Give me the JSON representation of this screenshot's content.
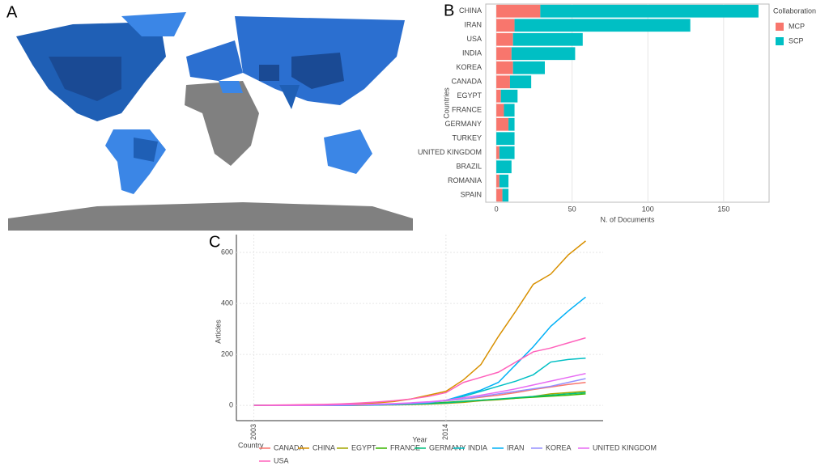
{
  "panels": [
    "A",
    "B",
    "C"
  ],
  "chart_data": [
    {
      "type": "bar",
      "orientation": "horizontal",
      "stacked": true,
      "x_label": "N. of Documents",
      "y_label": "Countries",
      "legend_title": "Collaboration",
      "categories": [
        "CHINA",
        "IRAN",
        "USA",
        "INDIA",
        "KOREA",
        "CANADA",
        "EGYPT",
        "FRANCE",
        "GERMANY",
        "TURKEY",
        "UNITED KINGDOM",
        "BRAZIL",
        "ROMANIA",
        "SPAIN"
      ],
      "series": [
        {
          "name": "MCP",
          "color": "#f8766d",
          "values": [
            29,
            12,
            11,
            10,
            11,
            9,
            3,
            5,
            8,
            0,
            2,
            0,
            2,
            4
          ]
        },
        {
          "name": "SCP",
          "color": "#00bfc4",
          "values": [
            144,
            116,
            46,
            42,
            21,
            14,
            11,
            7,
            4,
            12,
            10,
            10,
            6,
            4
          ]
        }
      ],
      "xlim": [
        -7,
        180
      ],
      "xticks": [
        0,
        50,
        100,
        150
      ],
      "grid": true,
      "legend": "right"
    },
    {
      "type": "line",
      "x_label": "Year",
      "y_label": "Articles",
      "legend_title": "Country",
      "x": [
        2003,
        2004,
        2005,
        2006,
        2007,
        2008,
        2009,
        2010,
        2011,
        2012,
        2013,
        2014,
        2015,
        2016,
        2017,
        2018,
        2019,
        2020,
        2021,
        2022
      ],
      "series": [
        {
          "name": "CANADA",
          "color": "#F8766D",
          "values": [
            0,
            0,
            0,
            0,
            0,
            1,
            2,
            3,
            5,
            8,
            12,
            18,
            25,
            32,
            40,
            50,
            62,
            72,
            82,
            90
          ]
        },
        {
          "name": "CHINA",
          "color": "#D89000",
          "values": [
            0,
            0,
            0,
            1,
            2,
            4,
            6,
            10,
            15,
            25,
            40,
            55,
            100,
            160,
            270,
            370,
            475,
            515,
            590,
            645
          ]
        },
        {
          "name": "EGYPT",
          "color": "#A3A500",
          "values": [
            0,
            0,
            0,
            0,
            0,
            0,
            0,
            1,
            2,
            3,
            5,
            8,
            12,
            18,
            22,
            28,
            35,
            45,
            50,
            55
          ]
        },
        {
          "name": "FRANCE",
          "color": "#39B600",
          "values": [
            0,
            0,
            0,
            0,
            0,
            1,
            2,
            3,
            4,
            6,
            8,
            12,
            16,
            20,
            24,
            28,
            32,
            36,
            40,
            45
          ]
        },
        {
          "name": "GERMANY",
          "color": "#00BF7D",
          "values": [
            0,
            0,
            0,
            0,
            0,
            0,
            1,
            2,
            3,
            5,
            7,
            10,
            15,
            20,
            25,
            30,
            35,
            40,
            45,
            50
          ]
        },
        {
          "name": "INDIA",
          "color": "#00BFC4",
          "values": [
            0,
            0,
            0,
            0,
            0,
            0,
            1,
            2,
            4,
            7,
            12,
            20,
            35,
            55,
            75,
            95,
            120,
            170,
            180,
            185
          ]
        },
        {
          "name": "IRAN",
          "color": "#00B0F6",
          "values": [
            0,
            0,
            0,
            0,
            0,
            0,
            1,
            2,
            3,
            6,
            10,
            20,
            40,
            60,
            90,
            160,
            230,
            310,
            370,
            425
          ]
        },
        {
          "name": "KOREA",
          "color": "#9590FF",
          "values": [
            0,
            0,
            0,
            0,
            0,
            1,
            2,
            3,
            5,
            8,
            12,
            18,
            25,
            35,
            45,
            55,
            65,
            75,
            90,
            105
          ]
        },
        {
          "name": "UNITED KINGDOM",
          "color": "#E76BF3",
          "values": [
            0,
            0,
            0,
            0,
            1,
            2,
            3,
            5,
            7,
            10,
            14,
            20,
            30,
            40,
            52,
            65,
            80,
            95,
            110,
            125
          ]
        },
        {
          "name": "USA",
          "color": "#FF62BC",
          "values": [
            0,
            1,
            2,
            3,
            4,
            6,
            9,
            13,
            18,
            25,
            35,
            50,
            90,
            110,
            130,
            170,
            210,
            225,
            245,
            265
          ]
        }
      ],
      "xlim": [
        2002,
        2023
      ],
      "xticks": [
        2003,
        2014
      ],
      "ylim": [
        -60,
        670
      ],
      "yticks": [
        0,
        200,
        400,
        600
      ],
      "grid": true,
      "legend": "bottom"
    }
  ]
}
